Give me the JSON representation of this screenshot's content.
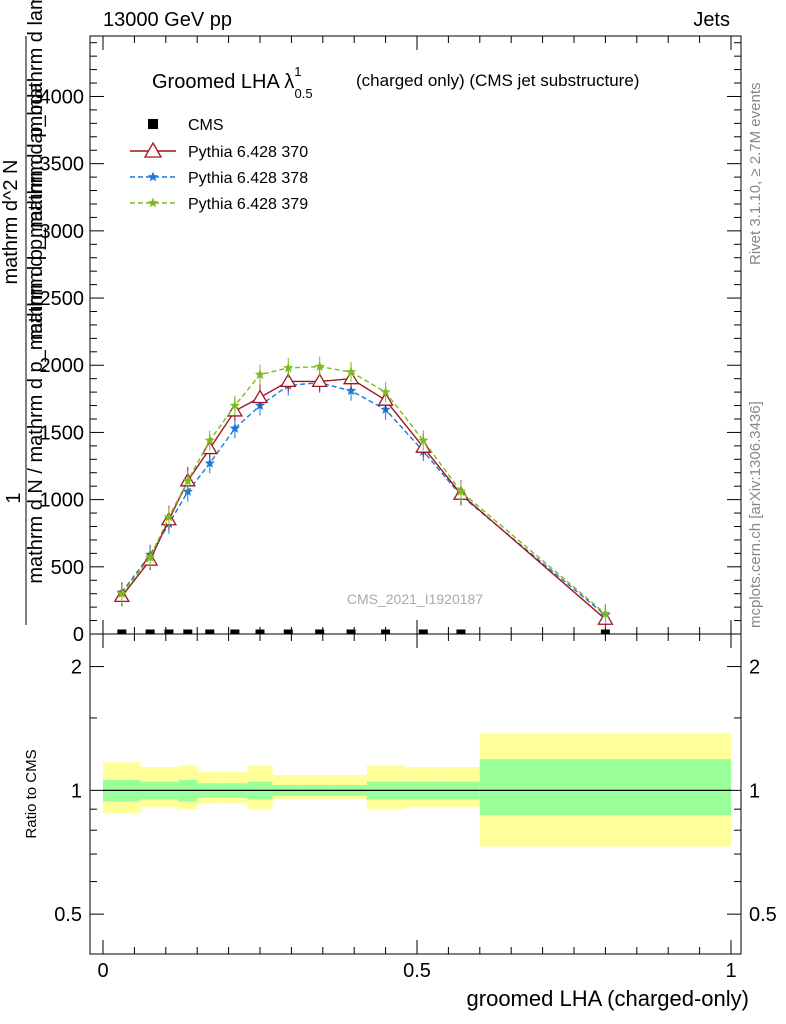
{
  "header": {
    "energy": "13000 GeV pp",
    "category": "Jets"
  },
  "side_labels": {
    "rivet": "Rivet 3.1.10, ≥ 2.7M events",
    "mcplots": "mcplots.cern.ch [arXiv:1306.3436]"
  },
  "chart_data": [
    {
      "type": "line",
      "title": "Groomed LHA λ",
      "title_superscript": "1",
      "title_subscript": "0.5",
      "title_suffix": "(charged only) (CMS jet substructure)",
      "watermark": "CMS_2021_I1920187",
      "ylabel_fraction_numerator": "1",
      "ylabel_fraction_denominator": "mathrm d N / mathrm d p_mathrm d p_mathrm d lambda",
      "ylabel_main_line1": "mathrm d^2 N",
      "ylabel_main_line2": "mathrm d p_mathrm d p_mathrm d lambda",
      "xlim": [
        0,
        1
      ],
      "ylim": [
        0,
        4450
      ],
      "yticks": [
        0,
        500,
        1000,
        1500,
        2000,
        2500,
        3000,
        3500,
        4000
      ],
      "ytick_labels": [
        "0",
        "500",
        "1000",
        "1500",
        "2000",
        "2500",
        "3000",
        "3500",
        "4000"
      ],
      "grid": false,
      "legend_position": "top-left",
      "x": [
        0.03,
        0.075,
        0.105,
        0.135,
        0.17,
        0.21,
        0.25,
        0.295,
        0.345,
        0.395,
        0.45,
        0.51,
        0.57,
        0.8
      ],
      "series": [
        {
          "name": "CMS",
          "color": "#000000",
          "marker": "square",
          "values": [
            0,
            0,
            0,
            0,
            0,
            0,
            0,
            0,
            0,
            0,
            0,
            0,
            0,
            0
          ]
        },
        {
          "name": "Pythia 6.428 370",
          "color": "#a0151f",
          "marker": "open-triangle",
          "line": "solid",
          "values": [
            280,
            550,
            850,
            1140,
            1380,
            1660,
            1760,
            1880,
            1880,
            1900,
            1740,
            1390,
            1040,
            110
          ]
        },
        {
          "name": "Pythia 6.428 378",
          "color": "#1a78d8",
          "marker": "star",
          "line": "dashed",
          "values": [
            310,
            590,
            820,
            1060,
            1270,
            1530,
            1700,
            1850,
            1870,
            1810,
            1670,
            1360,
            1030,
            140
          ]
        },
        {
          "name": "Pythia 6.428 379",
          "color": "#7dbb1e",
          "marker": "star",
          "line": "dashed",
          "values": [
            300,
            570,
            870,
            1140,
            1440,
            1700,
            1930,
            1980,
            1990,
            1950,
            1800,
            1440,
            1060,
            150
          ]
        }
      ]
    },
    {
      "type": "area",
      "ylabel": "Ratio to CMS",
      "xlabel": "groomed LHA (charged-only)",
      "xlim": [
        0,
        1
      ],
      "ylim": [
        0.4,
        2.4
      ],
      "log_y": true,
      "yticks_major": [
        0.5,
        1,
        2
      ],
      "ytick_labels": [
        "0.5",
        "1",
        "2"
      ],
      "xticks": [
        0,
        0.5,
        1
      ],
      "xtick_labels": [
        "0",
        "0.5",
        "1"
      ],
      "reference_line": 1,
      "bins": [
        0,
        0.06,
        0.09,
        0.12,
        0.15,
        0.19,
        0.23,
        0.27,
        0.32,
        0.37,
        0.42,
        0.48,
        0.54,
        0.6,
        1.0
      ],
      "yellow_band_color": "#ffff99",
      "green_band_color": "#99ff99",
      "yellow_band": {
        "low": [
          0.88,
          0.91,
          0.91,
          0.9,
          0.93,
          0.93,
          0.9,
          0.95,
          0.95,
          0.95,
          0.9,
          0.91,
          0.91,
          0.73
        ],
        "high": [
          1.17,
          1.14,
          1.14,
          1.15,
          1.11,
          1.11,
          1.15,
          1.09,
          1.09,
          1.09,
          1.15,
          1.14,
          1.14,
          1.38
        ]
      },
      "green_band": {
        "low": [
          0.94,
          0.95,
          0.95,
          0.94,
          0.96,
          0.96,
          0.95,
          0.97,
          0.97,
          0.97,
          0.95,
          0.95,
          0.95,
          0.87
        ],
        "high": [
          1.06,
          1.05,
          1.05,
          1.06,
          1.04,
          1.04,
          1.05,
          1.03,
          1.03,
          1.03,
          1.05,
          1.05,
          1.05,
          1.19
        ]
      }
    }
  ]
}
